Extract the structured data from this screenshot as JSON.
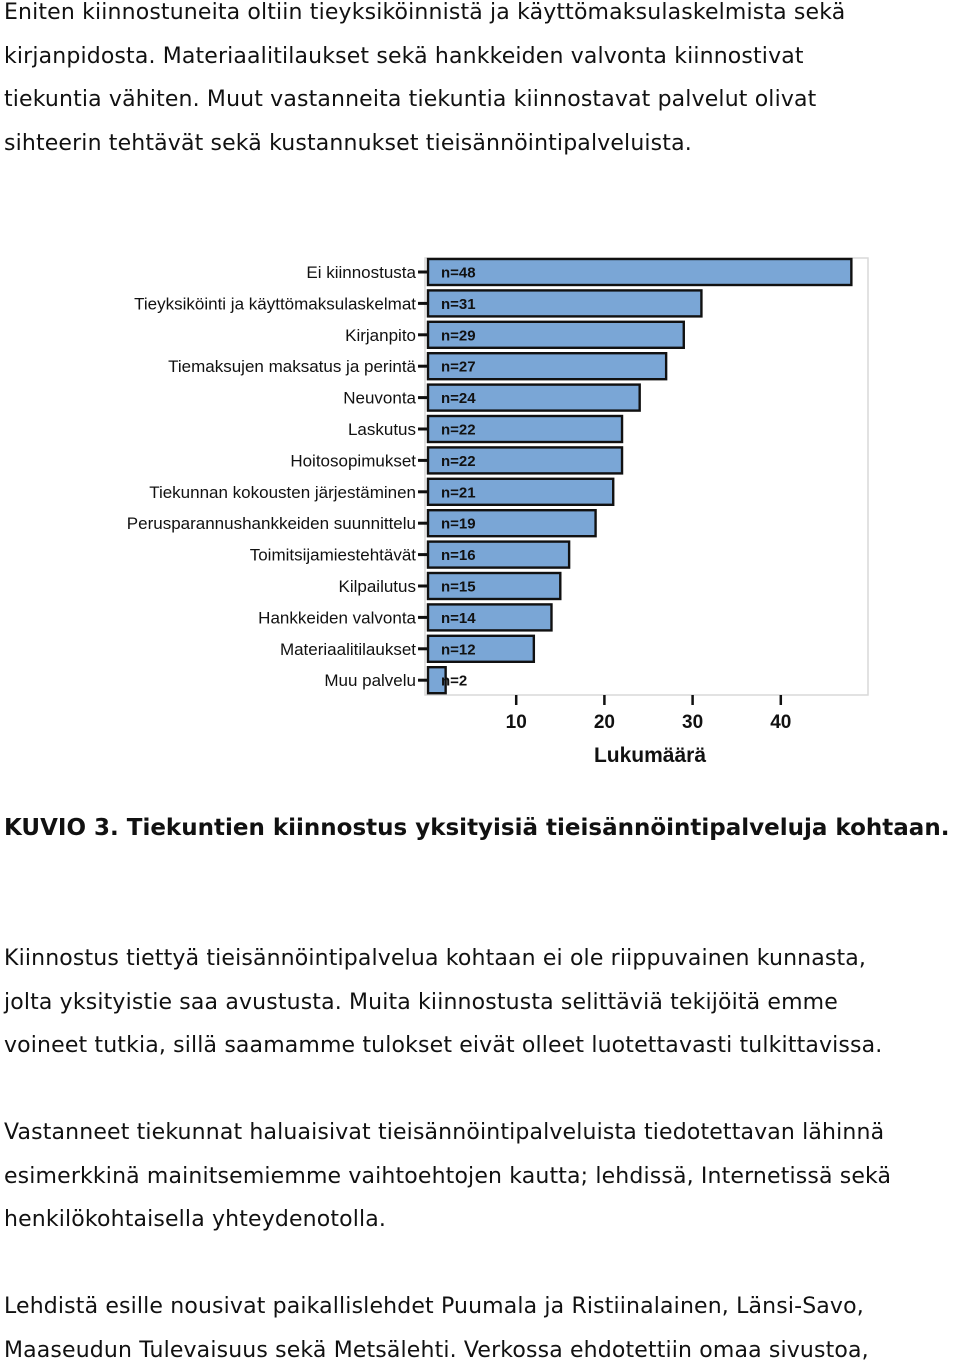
{
  "intro_paragraph": [
    "Eniten kiinnostuneita oltiin tieyksiköinnistä ja käyttömaksulaskelmista sekä",
    "kirjanpidosta. Materiaalitilaukset sekä hankkeiden valvonta kiinnostivat",
    "tiekuntia vähiten. Muut vastanneita tiekuntia kiinnostavat palvelut olivat",
    "sihteerin tehtävät sekä kustannukset tieisännöintipalveluista."
  ],
  "chart_data": {
    "type": "bar",
    "orientation": "horizontal",
    "categories": [
      "Ei kiinnostusta",
      "Tieyksiköinti ja käyttömaksulaskelmat",
      "Kirjanpito",
      "Tiemaksujen maksatus ja perintä",
      "Neuvonta",
      "Laskutus",
      "Hoitosopimukset",
      "Tiekunnan kokousten järjestäminen",
      "Perusparannushankkeiden suunnittelu",
      "Toimitsijamiestehtävät",
      "Kilpailutus",
      "Hankkeiden valvonta",
      "Materiaalitilaukset",
      "Muu palvelu"
    ],
    "values": [
      48,
      31,
      29,
      27,
      24,
      22,
      22,
      21,
      19,
      16,
      15,
      14,
      12,
      2
    ],
    "data_labels": [
      "n=48",
      "n=31",
      "n=29",
      "n=27",
      "n=24",
      "n=22",
      "n=22",
      "n=21",
      "n=19",
      "n=16",
      "n=15",
      "n=14",
      "n=12",
      "n=2"
    ],
    "xlabel": "Lukumäärä",
    "ylabel": "",
    "title": "",
    "xticks": [
      10,
      20,
      30,
      40
    ],
    "xlim": [
      0,
      50
    ],
    "grid": false,
    "bar_color": "#7aa6d6",
    "bar_edge_color": "#111111"
  },
  "caption": "KUVIO 3. Tiekuntien kiinnostus yksityisiä tieisännöintipalveluja kohtaan.",
  "paragraph_2": [
    "Kiinnostus tiettyä tieisännöintipalvelua kohtaan ei ole riippuvainen kunnasta,",
    "jolta yksityistie saa avustusta. Muita kiinnostusta selittäviä tekijöitä emme",
    "voineet tutkia, sillä saamamme tulokset eivät olleet luotettavasti tulkittavissa."
  ],
  "paragraph_3": [
    "Vastanneet tiekunnat haluaisivat tieisännöintipalveluista tiedotettavan lähinnä",
    "esimerkkinä mainitsemiemme vaihtoehtojen kautta; lehdissä, Internetissä sekä",
    "henkilökohtaisella yhteydenotolla."
  ],
  "paragraph_4": [
    "Lehdistä esille nousivat paikallislehdet Puumala ja Ristiinalainen, Länsi-Savo,",
    "Maaseudun Tulevaisuus sekä Metsälehti. Verkossa ehdotettiin omaa sivustoa,"
  ]
}
